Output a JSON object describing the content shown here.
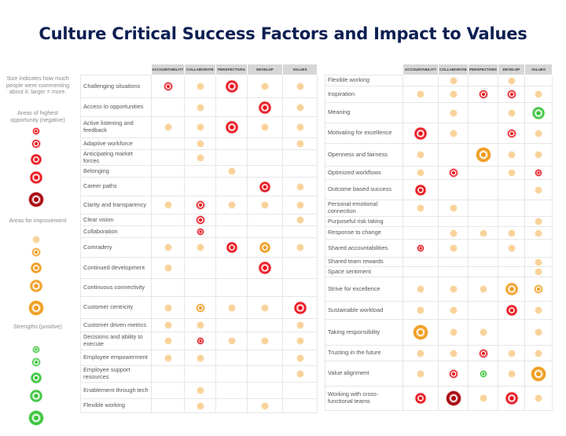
{
  "title": "Culture Critical Success Factors and Impact to Values",
  "columns": [
    "ACCOUNTABILITY",
    "COLLABORATE",
    "PERSPECTIVES",
    "DEVELOP",
    "VALUES"
  ],
  "legend": {
    "size_note": "Size indicates how much people were commenting about it: larger = more.",
    "negative_title": "Areas of highest opportunity (negative)",
    "improvement_title": "Areas for improvement",
    "strengths_title": "Strengths (positive)",
    "negative_dots": [
      1,
      2,
      3,
      4,
      5
    ],
    "improvement_dots": [
      1,
      2,
      3,
      4,
      5
    ],
    "positive_dots": [
      1,
      2,
      3,
      4,
      5
    ]
  },
  "colors": {
    "negative": "#e8101b",
    "negative_dark": "#a8000a",
    "improvement": "#f09c1c",
    "positive": "#3cc43c",
    "title": "#0c1f52",
    "header_fill": "#d6d6d6"
  },
  "left_table": [
    {
      "label": "Challenging situations",
      "cells": [
        [
          "n",
          2
        ],
        [
          "i",
          1
        ],
        [
          "n",
          4
        ],
        [
          "i",
          1
        ],
        [
          "i",
          1
        ]
      ]
    },
    {
      "label": "Access to opportunities",
      "cells": [
        null,
        [
          "i",
          1
        ],
        null,
        [
          "n",
          4
        ],
        [
          "i",
          1
        ]
      ]
    },
    {
      "label": "Active listening and feedback",
      "cells": [
        [
          "i",
          1
        ],
        [
          "i",
          1
        ],
        [
          "n",
          4
        ],
        [
          "i",
          1
        ],
        [
          "i",
          1
        ]
      ]
    },
    {
      "label": "Adaptive workforce",
      "cells": [
        null,
        [
          "i",
          1
        ],
        null,
        null,
        [
          "i",
          1
        ]
      ]
    },
    {
      "label": "Anticipating market forces",
      "cells": [
        null,
        [
          "i",
          1
        ],
        null,
        null,
        null
      ]
    },
    {
      "label": "Belonging",
      "cells": [
        null,
        null,
        [
          "i",
          1
        ],
        null,
        null
      ]
    },
    {
      "label": "Career paths",
      "cells": [
        null,
        null,
        null,
        [
          "n",
          3
        ],
        [
          "i",
          1
        ]
      ]
    },
    {
      "label": "Clarity and transparency",
      "cells": [
        [
          "i",
          1
        ],
        [
          "n",
          2
        ],
        [
          "i",
          1
        ],
        [
          "i",
          1
        ],
        [
          "i",
          1
        ]
      ]
    },
    {
      "label": "Clear vision",
      "cells": [
        null,
        [
          "n",
          2
        ],
        null,
        null,
        [
          "i",
          1
        ]
      ]
    },
    {
      "label": "Collaboration",
      "cells": [
        null,
        [
          "n",
          1
        ],
        null,
        null,
        null
      ]
    },
    {
      "label": "Comradery",
      "cells": [
        [
          "i",
          1
        ],
        [
          "i",
          1
        ],
        [
          "n",
          3
        ],
        [
          "i",
          3
        ],
        [
          "i",
          1
        ]
      ]
    },
    {
      "label": "Continued development",
      "cells": [
        [
          "i",
          1
        ],
        null,
        null,
        [
          "n",
          4
        ],
        null
      ]
    },
    {
      "label": "Continuous connectivity",
      "cells": [
        null,
        null,
        null,
        null,
        null
      ]
    },
    {
      "label": "Customer centricity",
      "cells": [
        [
          "i",
          1
        ],
        [
          "i",
          2
        ],
        [
          "i",
          1
        ],
        [
          "i",
          1
        ],
        [
          "n",
          4
        ]
      ]
    },
    {
      "label": "Customer driven metrics",
      "cells": [
        [
          "i",
          1
        ],
        [
          "i",
          1
        ],
        null,
        null,
        [
          "i",
          1
        ]
      ]
    },
    {
      "label": "Decisions and ability to execute",
      "cells": [
        [
          "i",
          1
        ],
        [
          "n",
          1
        ],
        [
          "i",
          1
        ],
        [
          "i",
          1
        ],
        [
          "i",
          1
        ]
      ]
    },
    {
      "label": "Employee empowerment",
      "cells": [
        [
          "i",
          1
        ],
        [
          "i",
          1
        ],
        null,
        null,
        [
          "i",
          1
        ]
      ]
    },
    {
      "label": "Employee support resources",
      "cells": [
        null,
        null,
        null,
        null,
        [
          "i",
          1
        ]
      ]
    },
    {
      "label": "Enablement through tech",
      "cells": [
        null,
        [
          "i",
          1
        ],
        null,
        null,
        null
      ]
    },
    {
      "label": "Flexible working",
      "cells": [
        null,
        [
          "i",
          1
        ],
        null,
        [
          "i",
          1
        ],
        null
      ]
    }
  ],
  "right_table": [
    {
      "label": "Flexible working",
      "cells": [
        null,
        [
          "i",
          1
        ],
        null,
        [
          "i",
          1
        ],
        null
      ]
    },
    {
      "label": "Inspiration",
      "cells": [
        [
          "i",
          1
        ],
        [
          "i",
          1
        ],
        [
          "n",
          2
        ],
        [
          "n",
          2
        ],
        [
          "i",
          1
        ]
      ]
    },
    {
      "label": "Meaning",
      "cells": [
        null,
        [
          "i",
          1
        ],
        null,
        [
          "i",
          1
        ],
        [
          "p",
          4
        ]
      ]
    },
    {
      "label": "Motivating for excellence",
      "cells": [
        [
          "n",
          4
        ],
        [
          "i",
          1
        ],
        null,
        [
          "n",
          2
        ],
        [
          "i",
          1
        ]
      ]
    },
    {
      "label": "Openness and fairness",
      "cells": [
        [
          "i",
          1
        ],
        null,
        [
          "i",
          5
        ],
        [
          "i",
          1
        ],
        [
          "i",
          1
        ]
      ]
    },
    {
      "label": "Optimized workflows",
      "cells": [
        [
          "i",
          1
        ],
        [
          "n",
          2
        ],
        null,
        [
          "i",
          1
        ],
        [
          "n",
          1
        ]
      ]
    },
    {
      "label": "Outcome based success",
      "cells": [
        [
          "n",
          3
        ],
        null,
        null,
        null,
        [
          "i",
          1
        ]
      ]
    },
    {
      "label": "Personal emotional connection",
      "cells": [
        [
          "i",
          1
        ],
        [
          "i",
          1
        ],
        null,
        null,
        null
      ]
    },
    {
      "label": "Purposeful risk taking",
      "cells": [
        null,
        null,
        null,
        null,
        [
          "i",
          1
        ]
      ]
    },
    {
      "label": "Response to change",
      "cells": [
        null,
        [
          "i",
          1
        ],
        [
          "i",
          1
        ],
        [
          "i",
          1
        ],
        [
          "i",
          1
        ]
      ]
    },
    {
      "label": "Shared accountabilities",
      "cells": [
        [
          "n",
          1
        ],
        [
          "i",
          1
        ],
        null,
        [
          "i",
          1
        ],
        null
      ]
    },
    {
      "label": "Shared team rewards",
      "cells": [
        null,
        null,
        null,
        null,
        [
          "i",
          1
        ]
      ]
    },
    {
      "label": "Space sentiment",
      "cells": [
        null,
        null,
        null,
        null,
        [
          "i",
          1
        ]
      ]
    },
    {
      "label": "Strive for excellence",
      "cells": [
        [
          "i",
          1
        ],
        [
          "i",
          1
        ],
        [
          "i",
          1
        ],
        [
          "i",
          4
        ],
        [
          "i",
          2
        ]
      ]
    },
    {
      "label": "Sustainable workload",
      "cells": [
        [
          "i",
          1
        ],
        [
          "i",
          1
        ],
        null,
        [
          "n",
          3
        ],
        [
          "i",
          1
        ]
      ]
    },
    {
      "label": "Taking responsibility",
      "cells": [
        [
          "i",
          5
        ],
        [
          "i",
          1
        ],
        [
          "i",
          1
        ],
        null,
        [
          "i",
          1
        ]
      ]
    },
    {
      "label": "Trusting in the future",
      "cells": [
        [
          "i",
          1
        ],
        [
          "i",
          1
        ],
        [
          "n",
          2
        ],
        [
          "i",
          1
        ],
        [
          "i",
          1
        ]
      ]
    },
    {
      "label": "Value alignment",
      "cells": [
        [
          "i",
          1
        ],
        [
          "n",
          2
        ],
        [
          "p",
          1
        ],
        [
          "i",
          1
        ],
        [
          "i",
          5
        ]
      ]
    },
    {
      "label": "Working with cross-functional teams",
      "cells": [
        [
          "n",
          3
        ],
        [
          "d",
          5
        ],
        [
          "i",
          1
        ],
        [
          "n",
          4
        ],
        [
          "i",
          1
        ]
      ]
    }
  ]
}
